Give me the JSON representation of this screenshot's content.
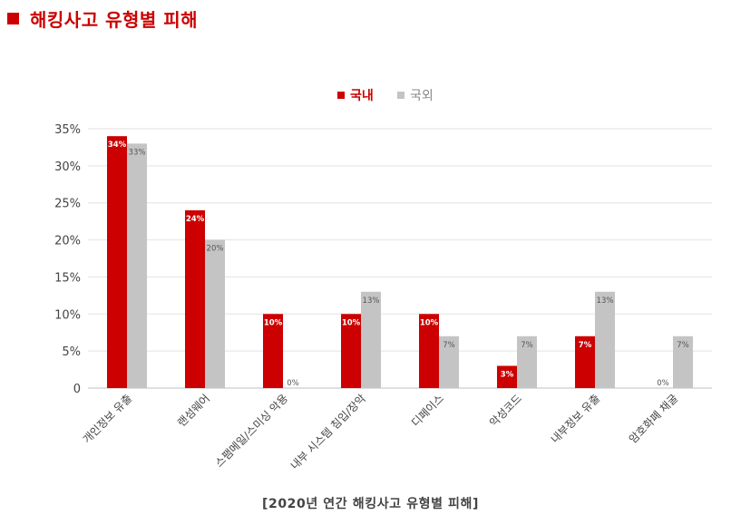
{
  "header": {
    "title": "해킹사고 유형별 피해"
  },
  "caption": "[2020년 연간 해킹사고 유형별 피해]",
  "colors": {
    "accent": "#cc0000",
    "domestic": "#cc0000",
    "overseas": "#c4c4c4"
  },
  "chart_data": {
    "type": "bar",
    "title": "",
    "xlabel": "",
    "ylabel": "",
    "ylim": [
      0,
      35
    ],
    "yticks": [
      "0",
      "5%",
      "10%",
      "15%",
      "20%",
      "25%",
      "30%",
      "35%"
    ],
    "grid": true,
    "legend": "top-center",
    "categories": [
      "개인정보 유출",
      "랜섬웨어",
      "스팸메일/스미싱 악용",
      "내부 시스템 침입/장악",
      "디페이스",
      "악성코드",
      "내부정보 유출",
      "암호화폐 채굴"
    ],
    "series": [
      {
        "name": "국내",
        "values": [
          34,
          24,
          10,
          10,
          10,
          3,
          7,
          0
        ],
        "labels": [
          "34%",
          "24%",
          "10%",
          "10%",
          "10%",
          "3%",
          "7%",
          "0%"
        ]
      },
      {
        "name": "국외",
        "values": [
          33,
          20,
          0,
          13,
          7,
          7,
          13,
          7
        ],
        "labels": [
          "33%",
          "20%",
          "0%",
          "13%",
          "7%",
          "7%",
          "13%",
          "7%"
        ]
      }
    ]
  }
}
